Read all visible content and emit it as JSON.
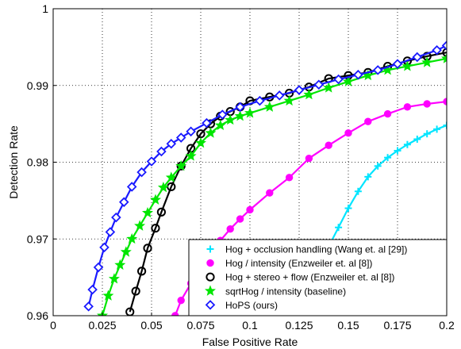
{
  "chart_data": {
    "type": "line",
    "title": "",
    "xlabel": "False Positive Rate",
    "ylabel": "Detection Rate",
    "xlim": [
      0,
      0.2
    ],
    "ylim": [
      0.96,
      1
    ],
    "xticks": [
      "0",
      "0.025",
      "0.05",
      "0.075",
      "0.1",
      "0.125",
      "0.15",
      "0.175",
      "0.2"
    ],
    "yticks": [
      "0.96",
      "0.97",
      "0.98",
      "0.99",
      "1"
    ],
    "grid": true,
    "legend_position": "bottom-right",
    "series": [
      {
        "name": "Hog + occlusion handling (Wang et. al [29])",
        "color": "#00e5ff",
        "marker": "plus",
        "x": [
          0.131,
          0.135,
          0.14,
          0.145,
          0.15,
          0.155,
          0.16,
          0.165,
          0.17,
          0.175,
          0.18,
          0.185,
          0.19,
          0.195,
          0.2
        ],
        "y": [
          0.96,
          0.9647,
          0.969,
          0.9715,
          0.974,
          0.9762,
          0.9781,
          0.9795,
          0.9806,
          0.9815,
          0.9823,
          0.983,
          0.9837,
          0.9843,
          0.9848
        ]
      },
      {
        "name": "Hog / intensity (Enzweiler et. al [8])",
        "color": "#ff00ff",
        "marker": "circle-filled",
        "x": [
          0.062,
          0.065,
          0.07,
          0.075,
          0.08,
          0.085,
          0.09,
          0.095,
          0.1,
          0.11,
          0.12,
          0.13,
          0.14,
          0.15,
          0.16,
          0.17,
          0.18,
          0.19,
          0.2
        ],
        "y": [
          0.96,
          0.962,
          0.9642,
          0.9664,
          0.9683,
          0.9698,
          0.9713,
          0.9726,
          0.9738,
          0.976,
          0.978,
          0.9805,
          0.9822,
          0.9838,
          0.9853,
          0.9863,
          0.9872,
          0.9876,
          0.9879
        ]
      },
      {
        "name": "Hog + stereo + flow (Enzweiler et. al [8])",
        "color": "#000000",
        "marker": "circle-open",
        "x": [
          0.039,
          0.042,
          0.045,
          0.048,
          0.052,
          0.055,
          0.06,
          0.065,
          0.07,
          0.075,
          0.08,
          0.085,
          0.09,
          0.095,
          0.1,
          0.11,
          0.12,
          0.13,
          0.14,
          0.15,
          0.16,
          0.17,
          0.18,
          0.19,
          0.2
        ],
        "y": [
          0.9605,
          0.9632,
          0.9658,
          0.9688,
          0.9714,
          0.9735,
          0.9768,
          0.9795,
          0.9818,
          0.9837,
          0.985,
          0.986,
          0.9866,
          0.9872,
          0.988,
          0.9885,
          0.989,
          0.9898,
          0.9909,
          0.9913,
          0.9917,
          0.9925,
          0.9932,
          0.9938,
          0.9943
        ]
      },
      {
        "name": "sqrtHog / intensity (baseline)",
        "color": "#00e600",
        "marker": "star",
        "x": [
          0.025,
          0.028,
          0.031,
          0.034,
          0.037,
          0.04,
          0.044,
          0.048,
          0.052,
          0.056,
          0.06,
          0.065,
          0.07,
          0.075,
          0.08,
          0.085,
          0.09,
          0.095,
          0.1,
          0.11,
          0.12,
          0.13,
          0.14,
          0.15,
          0.16,
          0.17,
          0.18,
          0.19,
          0.2
        ],
        "y": [
          0.96,
          0.9626,
          0.9648,
          0.9666,
          0.9683,
          0.97,
          0.9717,
          0.9734,
          0.9751,
          0.9767,
          0.978,
          0.9795,
          0.9808,
          0.9825,
          0.9838,
          0.9848,
          0.9855,
          0.986,
          0.9864,
          0.9872,
          0.988,
          0.9888,
          0.9897,
          0.9905,
          0.9913,
          0.992,
          0.9925,
          0.993,
          0.9935
        ]
      },
      {
        "name": "HoPS (ours)",
        "color": "#1a1aff",
        "marker": "diamond",
        "x": [
          0.018,
          0.02,
          0.023,
          0.026,
          0.029,
          0.032,
          0.036,
          0.04,
          0.045,
          0.05,
          0.055,
          0.06,
          0.065,
          0.07,
          0.078,
          0.086,
          0.095,
          0.105,
          0.115,
          0.125,
          0.135,
          0.145,
          0.155,
          0.165,
          0.175,
          0.185,
          0.195,
          0.2
        ],
        "y": [
          0.9612,
          0.9634,
          0.9663,
          0.9689,
          0.9709,
          0.9728,
          0.9748,
          0.9768,
          0.9787,
          0.9801,
          0.9814,
          0.9824,
          0.9832,
          0.984,
          0.9851,
          0.9862,
          0.9872,
          0.988,
          0.9887,
          0.9894,
          0.9901,
          0.9908,
          0.9914,
          0.992,
          0.9928,
          0.9937,
          0.9946,
          0.9952
        ]
      }
    ]
  }
}
